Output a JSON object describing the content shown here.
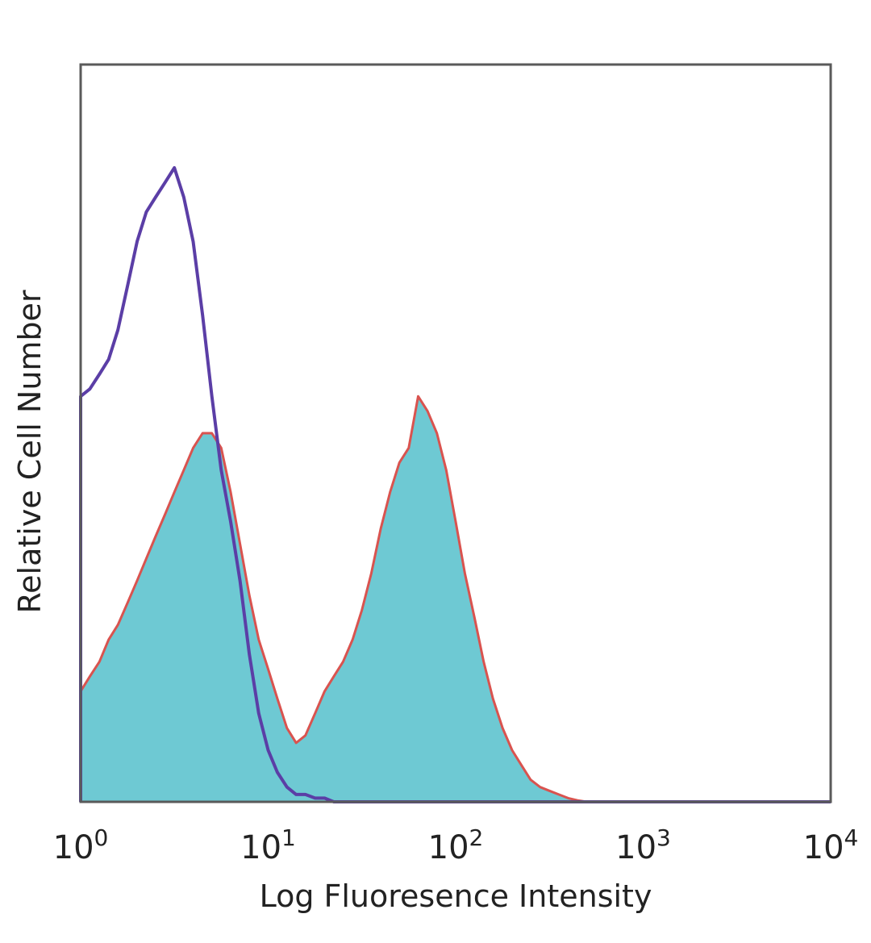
{
  "chart_data": {
    "type": "area",
    "title": "",
    "xlabel": "Log Fluoresence Intensity",
    "ylabel": "Relative Cell Number",
    "xscale": "log",
    "xlim": [
      1,
      10000
    ],
    "ylim": [
      0,
      100
    ],
    "grid": false,
    "legend": "none",
    "x_ticks": [
      {
        "base": "10",
        "exp": "0",
        "value": 1
      },
      {
        "base": "10",
        "exp": "1",
        "value": 10
      },
      {
        "base": "10",
        "exp": "2",
        "value": 100
      },
      {
        "base": "10",
        "exp": "3",
        "value": 1000
      },
      {
        "base": "10",
        "exp": "4",
        "value": 10000
      }
    ],
    "colors": {
      "frame": "#5a5a5a",
      "control_line": "#5b3ea6",
      "stained_fill": "#6ec9d3",
      "stained_line": "#d9534f"
    },
    "series": [
      {
        "style": "filled",
        "x": [
          1,
          1.12,
          1.26,
          1.41,
          1.58,
          1.78,
          2.0,
          2.24,
          2.51,
          2.82,
          3.16,
          3.55,
          3.98,
          4.47,
          5.01,
          5.62,
          6.31,
          7.08,
          7.94,
          8.91,
          10.0,
          11.2,
          12.6,
          14.1,
          15.8,
          17.8,
          20.0,
          22.4,
          25.1,
          28.2,
          31.6,
          35.5,
          39.8,
          44.7,
          50.1,
          56.2,
          63.1,
          70.8,
          79.4,
          89.1,
          100,
          112,
          126,
          141,
          158,
          178,
          200,
          224,
          251,
          282,
          316,
          355,
          398,
          447,
          501,
          562
        ],
        "values": [
          15,
          17,
          19,
          22,
          24,
          27,
          30,
          33,
          36,
          39,
          42,
          45,
          48,
          50,
          50,
          48,
          42,
          35,
          28,
          22,
          18,
          14,
          10,
          8,
          9,
          12,
          15,
          17,
          19,
          22,
          26,
          31,
          37,
          42,
          46,
          48,
          55,
          53,
          50,
          45,
          38,
          31,
          25,
          19,
          14,
          10,
          7,
          5,
          3,
          2,
          1.5,
          1,
          0.5,
          0.2,
          0,
          0
        ]
      },
      {
        "style": "line",
        "x": [
          1,
          1.12,
          1.26,
          1.41,
          1.58,
          1.78,
          2.0,
          2.24,
          2.51,
          2.82,
          3.16,
          3.55,
          3.98,
          4.47,
          5.01,
          5.62,
          6.31,
          7.08,
          7.94,
          8.91,
          10.0,
          11.2,
          12.6,
          14.1,
          15.8,
          17.8,
          20.0,
          22.4,
          25.1
        ],
        "values": [
          55,
          56,
          58,
          60,
          64,
          70,
          76,
          80,
          82,
          84,
          86,
          82,
          76,
          66,
          55,
          45,
          38,
          30,
          20,
          12,
          7,
          4,
          2,
          1,
          1,
          0.5,
          0.5,
          0,
          0
        ]
      }
    ]
  }
}
